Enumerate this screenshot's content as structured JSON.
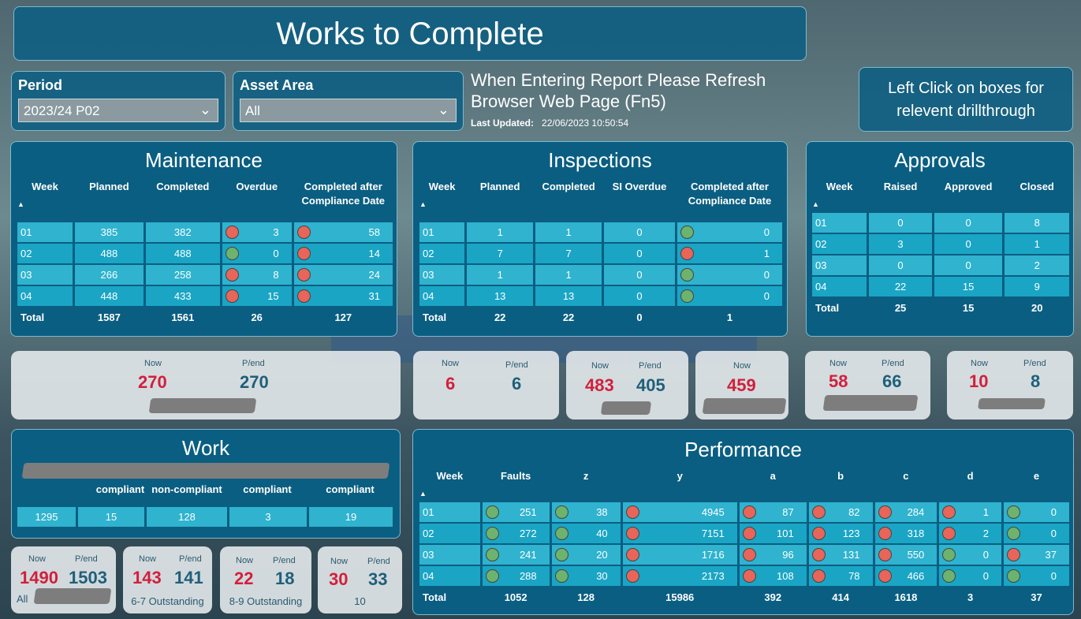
{
  "header": {
    "title": "Works to Complete"
  },
  "period": {
    "label": "Period",
    "value": "2023/24 P02"
  },
  "asset_area": {
    "label": "Asset Area",
    "value": "All"
  },
  "notice": {
    "text": "When Entering Report Please Refresh Browser Web Page (Fn5)",
    "updated_label": "Last Updated:",
    "updated_value": "22/06/2023 10:50:54"
  },
  "help": {
    "text": "Left Click on boxes for relevent drillthrough"
  },
  "maintenance": {
    "title": "Maintenance",
    "headers": [
      "Week",
      "Planned",
      "Completed",
      "Overdue",
      "Completed after Compliance Date"
    ],
    "rows": [
      [
        "01",
        "385",
        "382",
        "3",
        "58"
      ],
      [
        "02",
        "488",
        "488",
        "0",
        "14"
      ],
      [
        "03",
        "266",
        "258",
        "8",
        "24"
      ],
      [
        "04",
        "448",
        "433",
        "15",
        "31"
      ]
    ],
    "total": [
      "Total",
      "1587",
      "1561",
      "26",
      "127"
    ]
  },
  "inspections": {
    "title": "Inspections",
    "headers": [
      "Week",
      "Planned",
      "Completed",
      "SI Overdue",
      "Completed after Compliance Date"
    ],
    "rows": [
      [
        "01",
        "1",
        "1",
        "0",
        "0"
      ],
      [
        "02",
        "7",
        "7",
        "0",
        "1"
      ],
      [
        "03",
        "1",
        "1",
        "0",
        "0"
      ],
      [
        "04",
        "13",
        "13",
        "0",
        "0"
      ]
    ],
    "total": [
      "Total",
      "22",
      "22",
      "0",
      "1"
    ]
  },
  "approvals": {
    "title": "Approvals",
    "headers": [
      "Week",
      "Raised",
      "Approved",
      "Closed"
    ],
    "rows": [
      [
        "01",
        "0",
        "0",
        "8"
      ],
      [
        "02",
        "3",
        "0",
        "1"
      ],
      [
        "03",
        "0",
        "0",
        "2"
      ],
      [
        "04",
        "22",
        "15",
        "9"
      ]
    ],
    "total": [
      "Total",
      "25",
      "15",
      "20"
    ]
  },
  "cards_top": {
    "now": "Now",
    "pend": "P/end",
    "c1": {
      "now": "270",
      "pend": "270"
    },
    "c2": {
      "now": "6",
      "pend": "6"
    },
    "c3": {
      "now": "483",
      "pend": "405"
    },
    "c4": {
      "now": "459"
    },
    "c5": {
      "now": "58",
      "pend": "66"
    },
    "c6": {
      "now": "10",
      "pend": "8"
    }
  },
  "work": {
    "title": "Work",
    "headers": [
      "compliant",
      "non-compliant",
      "compliant",
      "compliant"
    ],
    "values": [
      "1295",
      "15",
      "128",
      "3",
      "19"
    ]
  },
  "cards_bottom": {
    "b1": {
      "now": "1490",
      "pend": "1503",
      "cap": "All"
    },
    "b2": {
      "now": "143",
      "pend": "141",
      "cap": "6-7 Outstanding"
    },
    "b3": {
      "now": "22",
      "pend": "18",
      "cap": "8-9 Outstanding"
    },
    "b4": {
      "now": "30",
      "pend": "33",
      "cap": "10"
    }
  },
  "performance": {
    "title": "Performance",
    "headers": [
      "Week",
      "Faults",
      "z",
      "y",
      "a",
      "b",
      "c",
      "d",
      "e"
    ],
    "rows": [
      [
        "01",
        "251",
        "38",
        "4945",
        "87",
        "82",
        "284",
        "1",
        "0"
      ],
      [
        "02",
        "272",
        "40",
        "7151",
        "101",
        "123",
        "318",
        "2",
        "0"
      ],
      [
        "03",
        "241",
        "20",
        "1716",
        "96",
        "131",
        "550",
        "0",
        "37"
      ],
      [
        "04",
        "288",
        "30",
        "2173",
        "108",
        "78",
        "466",
        "0",
        "0"
      ]
    ],
    "total": [
      "Total",
      "1052",
      "128",
      "15986",
      "392",
      "414",
      "1618",
      "3",
      "37"
    ]
  },
  "colors": {
    "panel": "#0a5e82",
    "cell": "#2fb3cf",
    "red_dot": "#e8655a",
    "green_dot": "#6db36e",
    "now_red": "#d21f3c",
    "pend_blue": "#1f5f7a"
  }
}
